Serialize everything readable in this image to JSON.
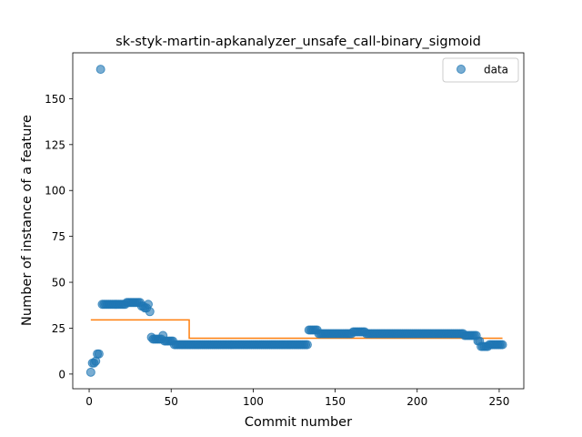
{
  "chart_data": {
    "type": "scatter",
    "title": "sk-styk-martin-apkanalyzer_unsafe_call-binary_sigmoid",
    "xlabel": "Commit number",
    "ylabel": "Number of instance of a feature",
    "xlim": [
      -10,
      265
    ],
    "ylim": [
      -8,
      175
    ],
    "xticks": [
      0,
      50,
      100,
      150,
      200,
      250
    ],
    "yticks": [
      0,
      25,
      50,
      75,
      100,
      125,
      150
    ],
    "legend": {
      "position": "top-right",
      "entries": [
        "data"
      ]
    },
    "colors": {
      "data": "#1f77b4",
      "fit": "#ff7f0e"
    },
    "grid": false,
    "series": [
      {
        "name": "data",
        "segments": [
          {
            "x_from": 1,
            "x_to": 1,
            "y": 1
          },
          {
            "x_from": 2,
            "x_to": 3,
            "y": 6
          },
          {
            "x_from": 4,
            "x_to": 4,
            "y": 7
          },
          {
            "x_from": 5,
            "x_to": 6,
            "y": 11
          },
          {
            "x_from": 7,
            "x_to": 7,
            "y": 166
          },
          {
            "x_from": 8,
            "x_to": 22,
            "y": 38
          },
          {
            "x_from": 23,
            "x_to": 31,
            "y": 39
          },
          {
            "x_from": 32,
            "x_to": 33,
            "y": 37
          },
          {
            "x_from": 34,
            "x_to": 35,
            "y": 36
          },
          {
            "x_from": 36,
            "x_to": 36,
            "y": 38
          },
          {
            "x_from": 37,
            "x_to": 37,
            "y": 34
          },
          {
            "x_from": 38,
            "x_to": 38,
            "y": 20
          },
          {
            "x_from": 39,
            "x_to": 44,
            "y": 19
          },
          {
            "x_from": 45,
            "x_to": 45,
            "y": 21
          },
          {
            "x_from": 46,
            "x_to": 51,
            "y": 18
          },
          {
            "x_from": 52,
            "x_to": 133,
            "y": 16
          },
          {
            "x_from": 134,
            "x_to": 139,
            "y": 24
          },
          {
            "x_from": 140,
            "x_to": 160,
            "y": 22
          },
          {
            "x_from": 161,
            "x_to": 168,
            "y": 23
          },
          {
            "x_from": 169,
            "x_to": 228,
            "y": 22
          },
          {
            "x_from": 229,
            "x_to": 236,
            "y": 21
          },
          {
            "x_from": 237,
            "x_to": 238,
            "y": 18
          },
          {
            "x_from": 239,
            "x_to": 243,
            "y": 15
          },
          {
            "x_from": 244,
            "x_to": 252,
            "y": 16
          }
        ]
      },
      {
        "type": "line",
        "x": [
          1,
          61,
          61,
          252
        ],
        "y": [
          29.5,
          29.5,
          19.5,
          19.5
        ]
      }
    ]
  }
}
